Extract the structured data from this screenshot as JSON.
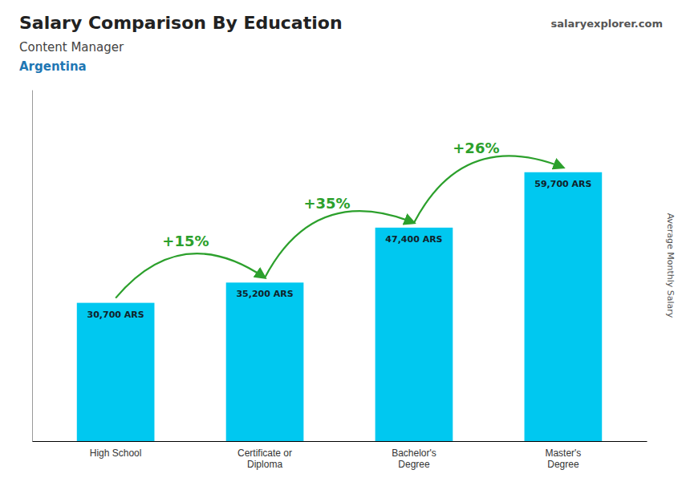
{
  "chart_data": {
    "type": "bar",
    "title": "Salary Comparison By Education",
    "subtitle": "Content Manager",
    "country": "Argentina",
    "source": "salaryexplorer.com",
    "ylabel": "Average Monthly Salary",
    "categories": [
      "High School",
      "Certificate or\nDiploma",
      "Bachelor's\nDegree",
      "Master's\nDegree"
    ],
    "values": [
      30700,
      35200,
      47400,
      59700
    ],
    "value_labels": [
      "30,700 ARS",
      "35,200 ARS",
      "47,400 ARS",
      "59,700 ARS"
    ],
    "annotations": [
      "+15%",
      "+35%",
      "+26%"
    ],
    "color": "#00c8f0",
    "ylim": [
      0,
      78000
    ],
    "data_labels": true,
    "tick_labels": "x",
    "grid": false
  }
}
